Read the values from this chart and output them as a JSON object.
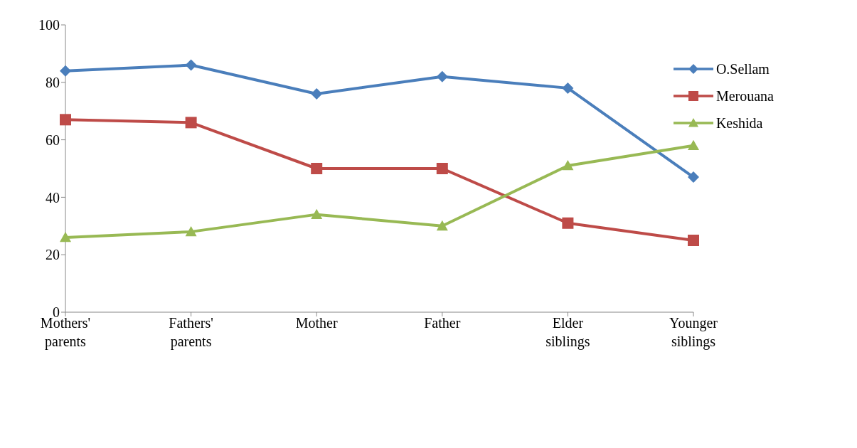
{
  "chart_data": {
    "type": "line",
    "categories": [
      "Mothers' parents",
      "Fathers' parents",
      "Mother",
      "Father",
      "Elder siblings",
      "Younger siblings"
    ],
    "series": [
      {
        "name": "O.Sellam",
        "color": "#4a7ebb",
        "marker": "diamond",
        "values": [
          84,
          86,
          76,
          82,
          78,
          47
        ]
      },
      {
        "name": "Merouana",
        "color": "#be4b48",
        "marker": "square",
        "values": [
          67,
          66,
          50,
          50,
          31,
          25
        ]
      },
      {
        "name": "Keshida",
        "color": "#98b954",
        "marker": "triangle",
        "values": [
          26,
          28,
          34,
          30,
          51,
          58
        ]
      }
    ],
    "ylim": [
      0,
      100
    ],
    "yticks": [
      0,
      20,
      40,
      60,
      80,
      100
    ],
    "grid": false,
    "legend": "top right"
  }
}
